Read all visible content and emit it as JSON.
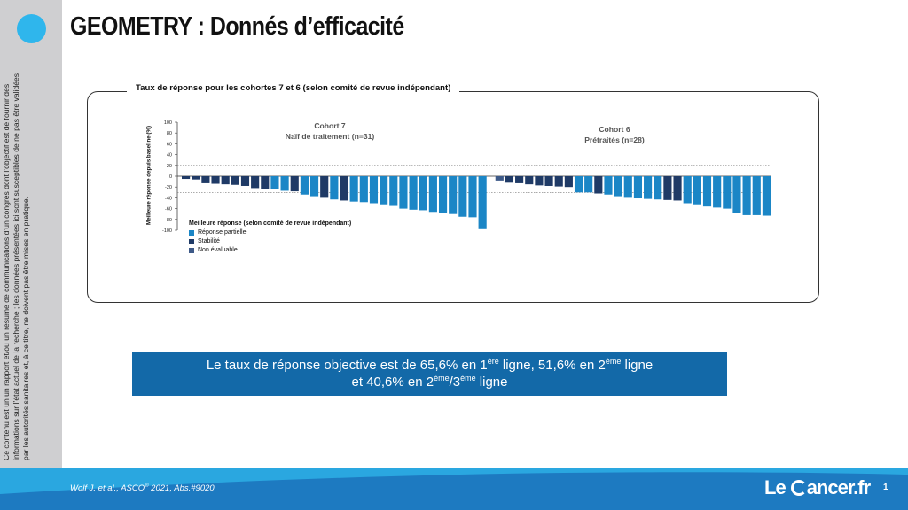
{
  "header": {
    "title": "GEOMETRY : Donnés d’efficacité"
  },
  "sidebar": {
    "disclaimer": "Ce contenu est un un rapport et/ou un résumé de communications d’un congrès dont l’objectif est de fournir des informations sur l’état actuel de la recherche ; les données présentées ici sont susceptibles de ne pas être validées par les autorités sanitaires et, à ce titre, ne doivent pas être mises en pratique."
  },
  "figure": {
    "frame_title": "Taux de réponse pour les cohortes 7 et 6 (selon comité de revue indépendant)"
  },
  "chart_data": {
    "type": "bar",
    "ylabel": "Meilleure réponse depuis baseline (%)",
    "ylim": [
      -100,
      100
    ],
    "yticks": [
      100,
      80,
      60,
      40,
      20,
      0,
      -20,
      -40,
      -60,
      -80,
      -100
    ],
    "reference_lines": [
      20,
      -30
    ],
    "legend": {
      "title": "Meilleure réponse (selon comité de revue indépendant)",
      "items": [
        {
          "key": "PR",
          "label": "Réponse partielle",
          "color": "#1b86c6"
        },
        {
          "key": "SD",
          "label": "Stabilité",
          "color": "#1f3a66"
        },
        {
          "key": "NE",
          "label": "Non évaluable",
          "color": "#3e5a88"
        }
      ]
    },
    "cohorts": [
      {
        "name": "Cohort 7",
        "subtitle": "Naïf de traitement (n=31)",
        "values": [
          -5,
          -6,
          -13,
          -14,
          -15,
          -16,
          -18,
          -22,
          -24,
          -24,
          -27,
          -28,
          -34,
          -37,
          -40,
          -43,
          -45,
          -47,
          -48,
          -50,
          -52,
          -55,
          -60,
          -62,
          -63,
          -66,
          -68,
          -70,
          -75,
          -76,
          -98
        ],
        "responses": [
          "SD",
          "SD",
          "SD",
          "SD",
          "SD",
          "SD",
          "SD",
          "SD",
          "SD",
          "PR",
          "PR",
          "SD",
          "PR",
          "PR",
          "SD",
          "PR",
          "SD",
          "PR",
          "PR",
          "PR",
          "PR",
          "PR",
          "PR",
          "PR",
          "PR",
          "PR",
          "PR",
          "PR",
          "PR",
          "PR",
          "PR"
        ]
      },
      {
        "name": "Cohort 6",
        "subtitle": "Prétraités (n=28)",
        "values": [
          -8,
          -12,
          -13,
          -15,
          -17,
          -18,
          -19,
          -20,
          -30,
          -30,
          -32,
          -34,
          -37,
          -40,
          -41,
          -42,
          -43,
          -44,
          -45,
          -50,
          -52,
          -56,
          -58,
          -60,
          -68,
          -72,
          -72,
          -73
        ],
        "responses": [
          "NE",
          "SD",
          "SD",
          "SD",
          "SD",
          "SD",
          "SD",
          "SD",
          "PR",
          "PR",
          "SD",
          "PR",
          "PR",
          "PR",
          "PR",
          "PR",
          "PR",
          "SD",
          "SD",
          "PR",
          "PR",
          "PR",
          "PR",
          "PR",
          "PR",
          "PR",
          "PR",
          "PR"
        ]
      }
    ]
  },
  "banner": {
    "line1_a": "Le taux de réponse objective est de 65,6% en 1",
    "line1_sup1": "ère",
    "line1_b": " ligne, 51,6% en 2",
    "line1_sup2": "ème",
    "line1_c": " ligne",
    "line2_a": "et 40,6% en 2",
    "line2_sup1": "ème",
    "line2_b": "/3",
    "line2_sup2": "ème",
    "line2_c": " ligne"
  },
  "footer": {
    "citation_a": "Wolf J. et al., ASCO",
    "citation_sup": "®",
    "citation_b": " 2021, Abs.#9020",
    "logo_le": "Le",
    "logo_rest": "ancer.fr",
    "page_number": "1"
  }
}
